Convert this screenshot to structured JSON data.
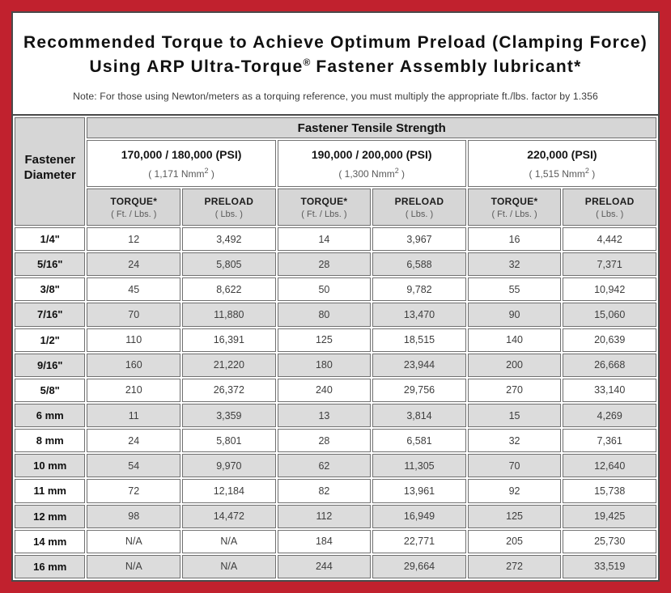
{
  "colors": {
    "frame_red": "#C1212E",
    "panel_border": "#4A4A4A",
    "cell_border": "#707070",
    "header_gray": "#D6D6D6",
    "row_alt_gray": "#DCDCDC"
  },
  "title": {
    "line1": "Recommended Torque to Achieve Optimum Preload (Clamping Force)",
    "line2_pre": "Using ARP Ultra-Torque",
    "line2_sup": "®",
    "line2_post": " Fastener Assembly lubricant*",
    "note": "Note: For those using Newton/meters as a torquing reference, you must multiply the appropriate ft./lbs. factor by 1.356"
  },
  "table": {
    "corner": {
      "line1": "Fastener",
      "line2": "Diameter"
    },
    "tensile_header": "Fastener Tensile Strength",
    "groups": [
      {
        "psi": "170,000 / 180,000 (PSI)",
        "nmm_pre": "( 1,171 Nmm",
        "nmm_sup": "2",
        "nmm_post": " )"
      },
      {
        "psi": "190,000 / 200,000 (PSI)",
        "nmm_pre": "( 1,300 Nmm",
        "nmm_sup": "2",
        "nmm_post": " )"
      },
      {
        "psi": "220,000 (PSI)",
        "nmm_pre": "( 1,515 Nmm",
        "nmm_sup": "2",
        "nmm_post": " )"
      }
    ],
    "sub": {
      "torque_label": "TORQUE*",
      "torque_unit": "( Ft. / Lbs. )",
      "preload_label": "PRELOAD",
      "preload_unit": "( Lbs. )"
    },
    "rows": [
      {
        "diameter": "1/4\"",
        "values": [
          "12",
          "3,492",
          "14",
          "3,967",
          "16",
          "4,442"
        ]
      },
      {
        "diameter": "5/16\"",
        "values": [
          "24",
          "5,805",
          "28",
          "6,588",
          "32",
          "7,371"
        ]
      },
      {
        "diameter": "3/8\"",
        "values": [
          "45",
          "8,622",
          "50",
          "9,782",
          "55",
          "10,942"
        ]
      },
      {
        "diameter": "7/16\"",
        "values": [
          "70",
          "11,880",
          "80",
          "13,470",
          "90",
          "15,060"
        ]
      },
      {
        "diameter": "1/2\"",
        "values": [
          "110",
          "16,391",
          "125",
          "18,515",
          "140",
          "20,639"
        ]
      },
      {
        "diameter": "9/16\"",
        "values": [
          "160",
          "21,220",
          "180",
          "23,944",
          "200",
          "26,668"
        ]
      },
      {
        "diameter": "5/8\"",
        "values": [
          "210",
          "26,372",
          "240",
          "29,756",
          "270",
          "33,140"
        ]
      },
      {
        "diameter": "6 mm",
        "values": [
          "11",
          "3,359",
          "13",
          "3,814",
          "15",
          "4,269"
        ]
      },
      {
        "diameter": "8 mm",
        "values": [
          "24",
          "5,801",
          "28",
          "6,581",
          "32",
          "7,361"
        ]
      },
      {
        "diameter": "10 mm",
        "values": [
          "54",
          "9,970",
          "62",
          "11,305",
          "70",
          "12,640"
        ]
      },
      {
        "diameter": "11 mm",
        "values": [
          "72",
          "12,184",
          "82",
          "13,961",
          "92",
          "15,738"
        ]
      },
      {
        "diameter": "12 mm",
        "values": [
          "98",
          "14,472",
          "112",
          "16,949",
          "125",
          "19,425"
        ]
      },
      {
        "diameter": "14 mm",
        "values": [
          "N/A",
          "N/A",
          "184",
          "22,771",
          "205",
          "25,730"
        ]
      },
      {
        "diameter": "16 mm",
        "values": [
          "N/A",
          "N/A",
          "244",
          "29,664",
          "272",
          "33,519"
        ]
      }
    ]
  }
}
